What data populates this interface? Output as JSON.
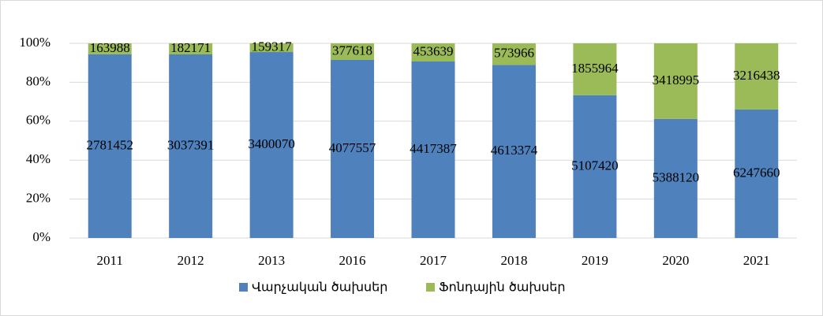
{
  "chart_data": {
    "type": "stacked_bar_100",
    "categories": [
      "2011",
      "2012",
      "2013",
      "2016",
      "2017",
      "2018",
      "2019",
      "2020",
      "2021"
    ],
    "series": [
      {
        "name": "Վարչական ծախսեր",
        "color": "#4f81bd",
        "values": [
          2781452,
          3037391,
          3400070,
          4077557,
          4417387,
          4613374,
          5107420,
          5388120,
          6247660
        ]
      },
      {
        "name": "Ֆոնդային ծախսեր",
        "color": "#9bbb59",
        "values": [
          163988,
          182171,
          159317,
          377618,
          453639,
          573966,
          1855964,
          3418995,
          3216438
        ]
      }
    ],
    "ylim": [
      0,
      100
    ],
    "yticks": [
      {
        "value": 0,
        "label": "0%"
      },
      {
        "value": 20,
        "label": "20%"
      },
      {
        "value": 40,
        "label": "40%"
      },
      {
        "value": 60,
        "label": "60%"
      },
      {
        "value": 80,
        "label": "80%"
      },
      {
        "value": 100,
        "label": "100%"
      }
    ],
    "grid": true,
    "legend": "bottom"
  }
}
